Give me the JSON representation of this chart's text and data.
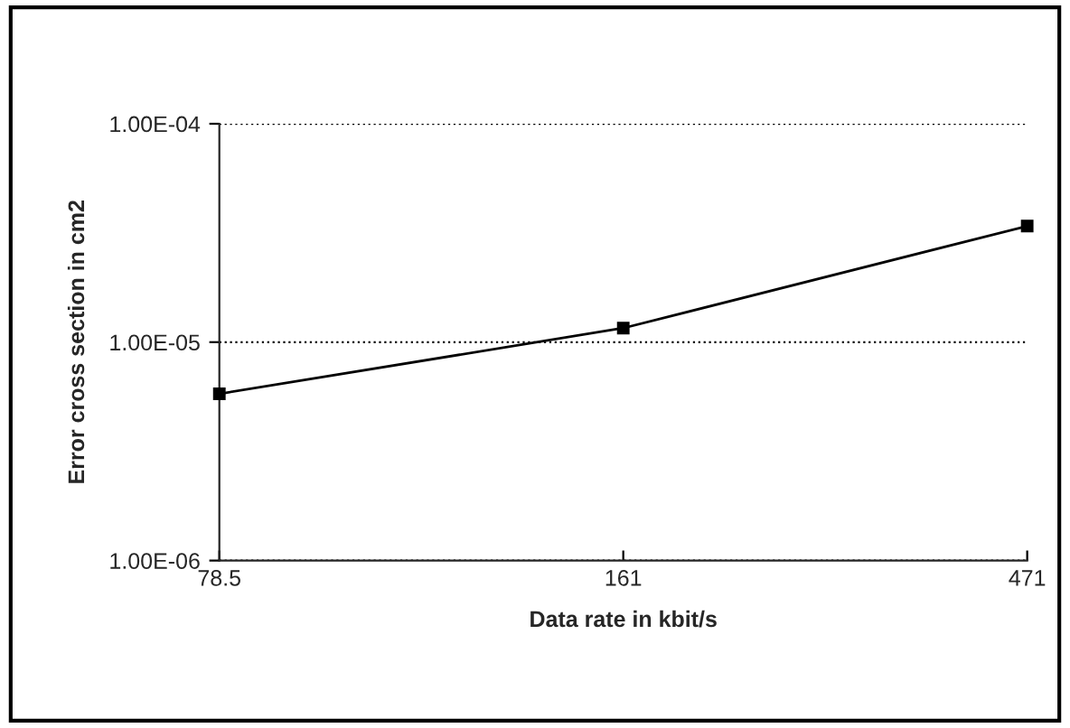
{
  "chart_data": {
    "type": "line",
    "xlabel": "Data rate in kbit/s",
    "ylabel": "Error cross section in cm2",
    "categories": [
      "78.5",
      "161",
      "471"
    ],
    "series": [
      {
        "color": "#000000",
        "values": [
          5.8e-06,
          1.16e-05,
          3.4e-05
        ]
      }
    ],
    "log": true,
    "ylim": [
      1e-06,
      0.0001
    ],
    "yticks": [
      {
        "value": 1e-06,
        "label": "1.00E-06"
      },
      {
        "value": 1e-05,
        "label": "1.00E-05"
      },
      {
        "value": 0.0001,
        "label": "1.00E-04"
      }
    ],
    "grid": "y",
    "marker": "square",
    "line_style": "solid"
  }
}
